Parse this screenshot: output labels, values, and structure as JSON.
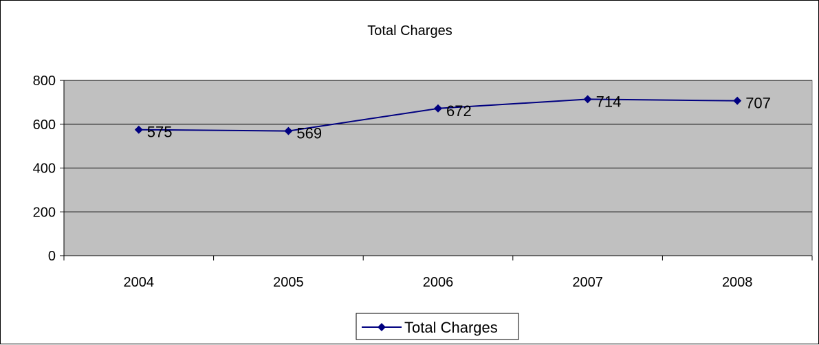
{
  "chart_data": {
    "type": "line",
    "title": "Total Charges",
    "categories": [
      "2004",
      "2005",
      "2006",
      "2007",
      "2008"
    ],
    "series": [
      {
        "name": "Total Charges",
        "values": [
          575,
          569,
          672,
          714,
          707
        ]
      }
    ],
    "data_labels": [
      "575",
      "569",
      "672",
      "714",
      "707"
    ],
    "xlabel": "",
    "ylabel": "",
    "ylim": [
      0,
      800
    ],
    "y_ticks": [
      "0",
      "200",
      "400",
      "600",
      "800"
    ],
    "grid": true,
    "legend": "bottom",
    "colors": {
      "series": "#000080",
      "plot_area": "#c0c0c0",
      "gridline": "#000000"
    },
    "marker": "diamond"
  }
}
